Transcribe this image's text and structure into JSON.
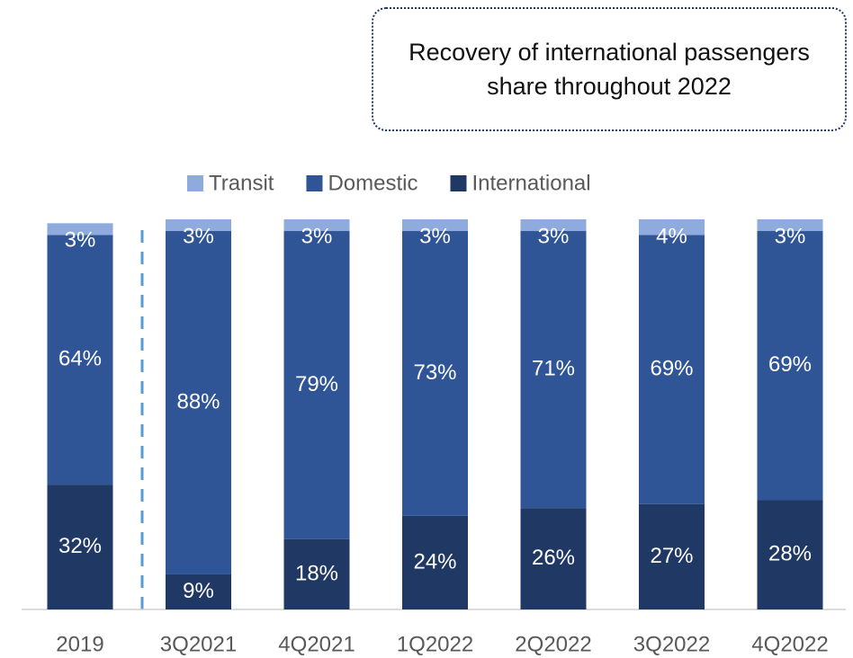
{
  "chart_data": {
    "type": "stacked_bar",
    "annotation": "Recovery of international passengers share throughout 2022",
    "categories": [
      "2019",
      "3Q2021",
      "4Q2021",
      "1Q2022",
      "2Q2022",
      "3Q2022",
      "4Q2022"
    ],
    "series": [
      {
        "name": "Transit",
        "color": "#8faadc",
        "values": [
          3,
          3,
          3,
          3,
          3,
          4,
          3
        ],
        "value_labels": [
          "3%",
          "3%",
          "3%",
          "3%",
          "3%",
          "4%",
          "3%"
        ]
      },
      {
        "name": "Domestic",
        "color": "#2f5597",
        "values": [
          64,
          88,
          79,
          73,
          71,
          69,
          69
        ],
        "value_labels": [
          "64%",
          "88%",
          "79%",
          "73%",
          "71%",
          "69%",
          "69%"
        ]
      },
      {
        "name": "International",
        "color": "#203864",
        "values": [
          32,
          9,
          18,
          24,
          26,
          27,
          28
        ],
        "value_labels": [
          "32%",
          "9%",
          "18%",
          "24%",
          "26%",
          "27%",
          "28%"
        ]
      }
    ],
    "ylim": [
      0,
      100
    ],
    "legend": "top"
  }
}
